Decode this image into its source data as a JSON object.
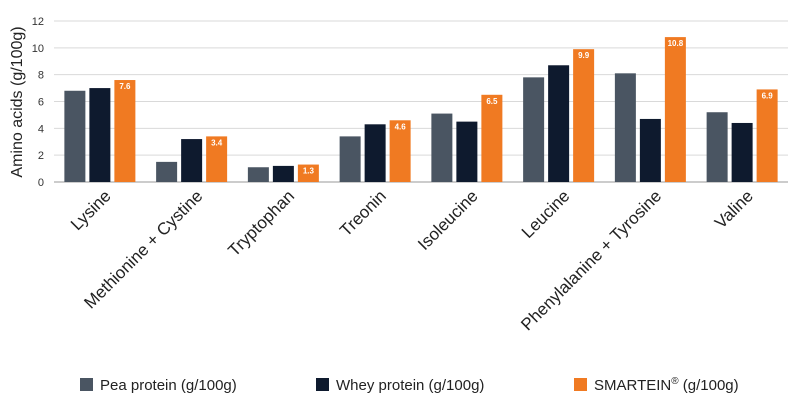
{
  "chart_data": {
    "type": "bar",
    "ylabel": "Amino acids (g/100g)",
    "xlabel": "",
    "ylim": [
      0,
      12
    ],
    "yticks": [
      0,
      2,
      4,
      6,
      8,
      10,
      12
    ],
    "grid": true,
    "legend_position": "bottom",
    "categories": [
      "Lysine",
      "Methionine + Cystine",
      "Tryptophan",
      "Treonin",
      "Isoleucine",
      "Leucine",
      "Phenylalanine + Tyrosine",
      "Valine"
    ],
    "series": [
      {
        "name": "Pea protein (g/100g)",
        "color": "#4a5562",
        "values": [
          6.8,
          1.5,
          1.1,
          3.4,
          5.1,
          7.8,
          8.1,
          5.2
        ]
      },
      {
        "name": "Whey protein (g/100g)",
        "color": "#0e1a2e",
        "values": [
          7.0,
          3.2,
          1.2,
          4.3,
          4.5,
          8.7,
          4.7,
          4.4
        ]
      },
      {
        "name": "SMARTEIN® (g/100g)",
        "name_base": "SMARTEIN",
        "name_sup": "®",
        "name_rest": " (g/100g)",
        "color": "#f07a22",
        "values": [
          7.6,
          3.4,
          1.3,
          4.6,
          6.5,
          9.9,
          10.8,
          6.9
        ],
        "data_labels": [
          "7.6",
          "3.4",
          "1.3",
          "4.6",
          "6.5",
          "9.9",
          "10.8",
          "6.9"
        ]
      }
    ],
    "gridline_color": "#d9d9d9",
    "axis_color": "#9a9a9a"
  }
}
